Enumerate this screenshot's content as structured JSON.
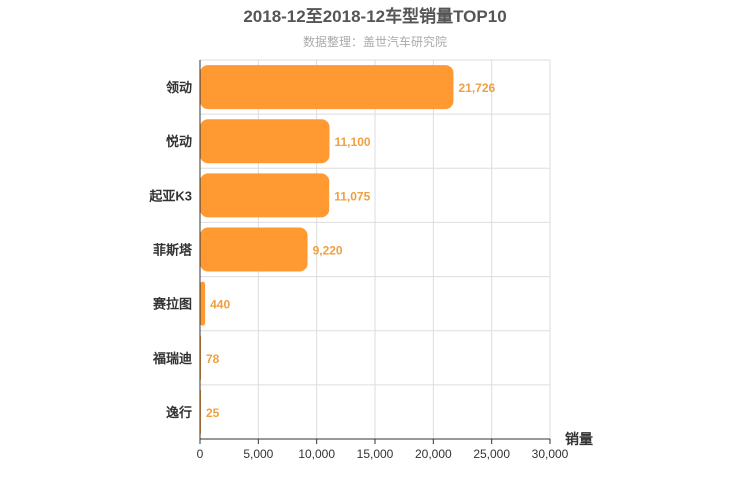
{
  "chart_data": {
    "type": "bar",
    "orientation": "horizontal",
    "title": "2018-12至2018-12车型销量TOP10",
    "subtitle": "数据整理：盖世汽车研究院",
    "xlabel": "销量",
    "ylabel": "",
    "categories": [
      "领动",
      "悦动",
      "起亚K3",
      "菲斯塔",
      "赛拉图",
      "福瑞迪",
      "逸行"
    ],
    "values": [
      21726,
      11100,
      11075,
      9220,
      440,
      78,
      25
    ],
    "value_labels": [
      "21,726",
      "11,100",
      "11,075",
      "9,220",
      "440",
      "78",
      "25"
    ],
    "xlim": [
      0,
      30000
    ],
    "xticks": [
      0,
      5000,
      10000,
      15000,
      20000,
      25000,
      30000
    ],
    "xtick_labels": [
      "0",
      "5,000",
      "10,000",
      "15,000",
      "20,000",
      "25,000",
      "30,000"
    ],
    "grid": true,
    "colors": {
      "bar": "#ff9a33",
      "label": "#f0a040",
      "grid": "#dddddd",
      "axis": "#333333"
    }
  }
}
